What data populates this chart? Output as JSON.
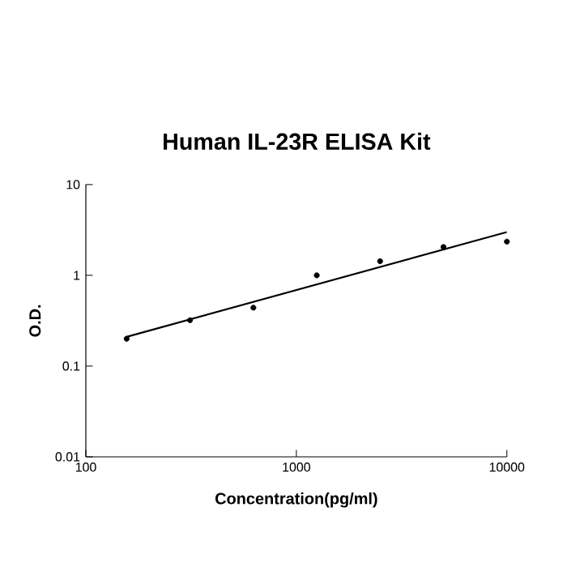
{
  "chart_data": {
    "type": "scatter",
    "title": "Human IL-23R  ELISA Kit",
    "xlabel": "Concentration(pg/ml)",
    "ylabel": "O.D.",
    "log": "xy",
    "grid": false,
    "xlim": [
      100,
      10000
    ],
    "xticks": [
      100,
      1000,
      10000
    ],
    "ylim": [
      0.01,
      10
    ],
    "yticks": [
      0.01,
      0.1,
      1,
      10
    ],
    "series": [
      {
        "color": "#000000",
        "marker": "circle",
        "x": [
          156.25,
          312.5,
          625,
          1250,
          2500,
          5000,
          10000
        ],
        "values": [
          0.2,
          0.32,
          0.44,
          1.0,
          1.43,
          2.05,
          2.35
        ]
      },
      {
        "type": "line",
        "color": "#000000",
        "marker": "none",
        "x": [
          156.25,
          10000
        ],
        "values": [
          0.21,
          3.0
        ]
      }
    ]
  }
}
